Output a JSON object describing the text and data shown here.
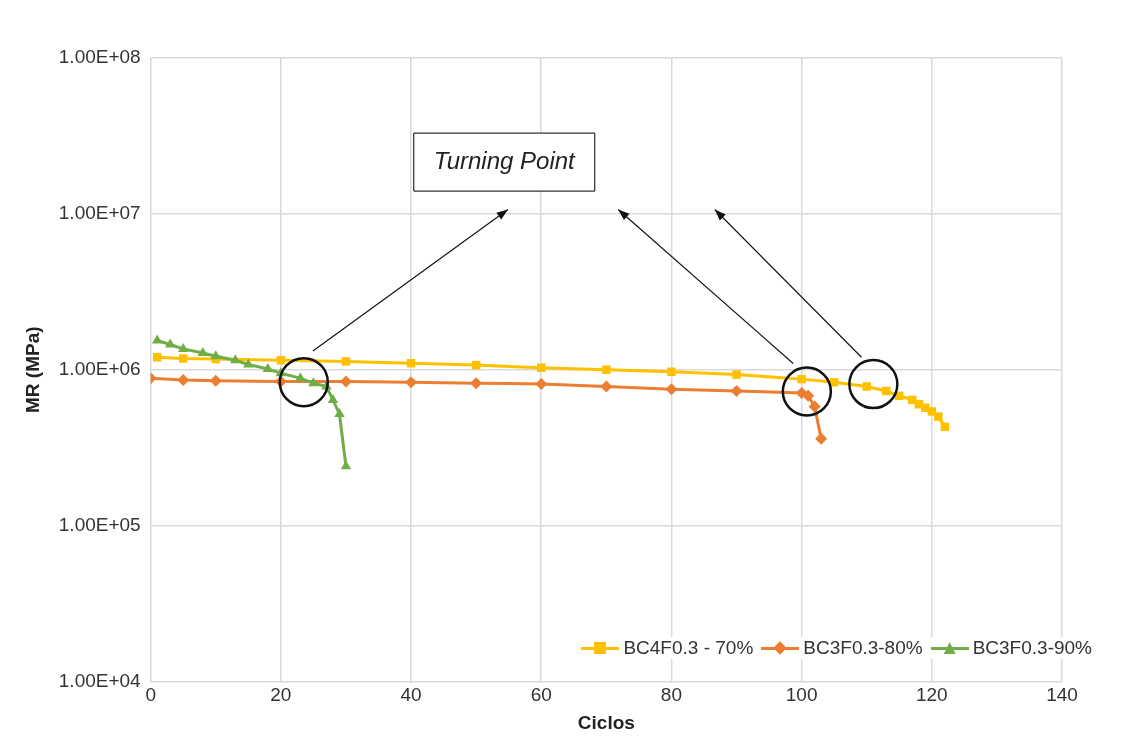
{
  "chart_data": {
    "type": "line",
    "xlabel": "Ciclos",
    "ylabel": "MR (MPa)",
    "log": "y",
    "xlim": [
      0,
      140
    ],
    "xticks": [
      0,
      20,
      40,
      60,
      80,
      100,
      120,
      140
    ],
    "ylim": [
      10000,
      100000000
    ],
    "yticks": [
      {
        "value": 10000,
        "label": "1.00E+04"
      },
      {
        "value": 100000,
        "label": "1.00E+05"
      },
      {
        "value": 1000000,
        "label": "1.00E+06"
      },
      {
        "value": 10000000,
        "label": "1.00E+07"
      },
      {
        "value": 100000000,
        "label": "1.00E+08"
      }
    ],
    "grid": true,
    "legend": "bottom right",
    "annotations": [
      "Turning Point"
    ],
    "series": [
      {
        "name": "BC4F0.3 - 70%",
        "color": "#ffc000",
        "marker": "square",
        "x": [
          1,
          5,
          10,
          20,
          30,
          40,
          50,
          60,
          70,
          80,
          90,
          100,
          105,
          110,
          113,
          115,
          117,
          118,
          119,
          120,
          121,
          122
        ],
        "values": [
          1200000,
          1180000,
          1170000,
          1150000,
          1130000,
          1100000,
          1070000,
          1030000,
          1000000,
          970000,
          930000,
          870000,
          830000,
          780000,
          730000,
          680000,
          640000,
          600000,
          570000,
          540000,
          500000,
          430000
        ]
      },
      {
        "name": "BC3F0.3-80%",
        "color": "#ed7d31",
        "marker": "diamond",
        "x": [
          0,
          5,
          10,
          20,
          30,
          40,
          50,
          60,
          70,
          80,
          90,
          100,
          101,
          102,
          103
        ],
        "values": [
          880000,
          860000,
          850000,
          840000,
          840000,
          830000,
          820000,
          810000,
          780000,
          750000,
          730000,
          710000,
          680000,
          580000,
          360000
        ]
      },
      {
        "name": "BC3F0.3-90%",
        "color": "#70ad47",
        "marker": "triangle",
        "x": [
          1,
          3,
          5,
          8,
          10,
          13,
          15,
          18,
          20,
          23,
          25,
          27,
          28,
          29,
          30
        ],
        "values": [
          1540000,
          1450000,
          1360000,
          1280000,
          1220000,
          1150000,
          1080000,
          1010000,
          950000,
          880000,
          820000,
          780000,
          640000,
          520000,
          240000
        ]
      }
    ]
  }
}
